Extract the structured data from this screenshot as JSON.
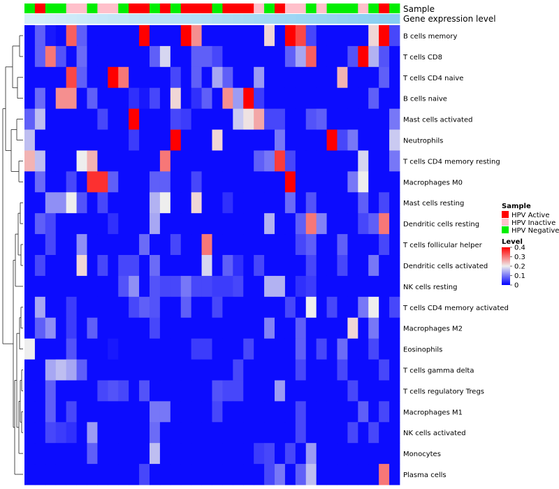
{
  "chart_data": {
    "type": "heatmap",
    "annotation_tracks": {
      "sample_label": "Sample",
      "gene_label": "Gene expression level"
    },
    "sample_categories": [
      {
        "name": "HPV Active",
        "color": "#ff0000"
      },
      {
        "name": "HPV Inactive",
        "color": "#ffc0cb"
      },
      {
        "name": "HPV Negative",
        "color": "#00ee00"
      }
    ],
    "sample_groups": "GRGGPPGPPGRRGRGRRRGRRRPGRPPGPGGGPGRG",
    "gene_track_colors": {
      "start": "#d6eef9",
      "end": "#87cdf2"
    },
    "rows": [
      "B cells memory",
      "T cells CD8",
      "T cells CD4 naive",
      "B cells naive",
      "Mast cells activated",
      "Neutrophils",
      "T cells CD4 memory resting",
      "Macrophages M0",
      "Mast cells resting",
      "Dendritic cells resting",
      "T cells follicular helper",
      "Dendritic cells activated",
      "NK cells resting",
      "T cells CD4 memory activated",
      "Macrophages M2",
      "Eosinophils",
      "T cells gamma delta",
      "T cells regulatory  Tregs",
      "Macrophages M1",
      "NK cells activated",
      "Monocytes",
      "Plasma cells"
    ],
    "n_columns": 36,
    "values": [
      [
        0.01,
        0.08,
        0.02,
        0.01,
        0.32,
        0.08,
        0.01,
        0.01,
        0.01,
        0.01,
        0.01,
        0.4,
        0.01,
        0.01,
        0.01,
        0.4,
        0.28,
        0.01,
        0.01,
        0.01,
        0.01,
        0.01,
        0.01,
        0.22,
        0.01,
        0.4,
        0.34,
        0.06,
        0.01,
        0.01,
        0.01,
        0.01,
        0.01,
        0.22,
        0.4,
        0.06
      ],
      [
        0.01,
        0.08,
        0.3,
        0.07,
        0.01,
        0.09,
        0.01,
        0.01,
        0.01,
        0.01,
        0.01,
        0.01,
        0.08,
        0.18,
        0.01,
        0.01,
        0.08,
        0.08,
        0.06,
        0.01,
        0.01,
        0.01,
        0.01,
        0.01,
        0.01,
        0.08,
        0.14,
        0.32,
        0.01,
        0.01,
        0.01,
        0.07,
        0.4,
        0.15,
        0.07,
        0.01
      ],
      [
        0.01,
        0.01,
        0.01,
        0.01,
        0.34,
        0.08,
        0.01,
        0.01,
        0.4,
        0.3,
        0.01,
        0.01,
        0.01,
        0.01,
        0.06,
        0.01,
        0.08,
        0.01,
        0.14,
        0.08,
        0.01,
        0.01,
        0.13,
        0.01,
        0.01,
        0.01,
        0.01,
        0.01,
        0.01,
        0.01,
        0.25,
        0.01,
        0.01,
        0.01,
        0.08,
        0.01
      ],
      [
        0.01,
        0.09,
        0.01,
        0.28,
        0.28,
        0.01,
        0.08,
        0.01,
        0.01,
        0.01,
        0.04,
        0.02,
        0.06,
        0.01,
        0.22,
        0.01,
        0.04,
        0.08,
        0.01,
        0.28,
        0.13,
        0.4,
        0.05,
        0.01,
        0.01,
        0.01,
        0.01,
        0.01,
        0.01,
        0.01,
        0.01,
        0.01,
        0.01,
        0.08,
        0.01,
        0.01
      ],
      [
        0.08,
        0.16,
        0.01,
        0.01,
        0.01,
        0.01,
        0.01,
        0.06,
        0.01,
        0.01,
        0.4,
        0.01,
        0.01,
        0.01,
        0.06,
        0.05,
        0.01,
        0.01,
        0.01,
        0.01,
        0.17,
        0.21,
        0.26,
        0.06,
        0.06,
        0.01,
        0.01,
        0.07,
        0.08,
        0.01,
        0.01,
        0.01,
        0.01,
        0.01,
        0.01,
        0.1
      ],
      [
        0.16,
        0.01,
        0.01,
        0.01,
        0.01,
        0.01,
        0.01,
        0.01,
        0.01,
        0.01,
        0.05,
        0.01,
        0.01,
        0.01,
        0.4,
        0.01,
        0.01,
        0.01,
        0.22,
        0.01,
        0.01,
        0.01,
        0.01,
        0.01,
        0.1,
        0.01,
        0.01,
        0.01,
        0.01,
        0.4,
        0.06,
        0.1,
        0.01,
        0.01,
        0.01,
        0.17
      ],
      [
        0.25,
        0.16,
        0.01,
        0.01,
        0.01,
        0.2,
        0.25,
        0.01,
        0.01,
        0.01,
        0.01,
        0.01,
        0.01,
        0.3,
        0.01,
        0.01,
        0.01,
        0.01,
        0.01,
        0.01,
        0.01,
        0.01,
        0.08,
        0.1,
        0.35,
        0.06,
        0.01,
        0.01,
        0.01,
        0.01,
        0.01,
        0.01,
        0.18,
        0.01,
        0.01,
        0.1
      ],
      [
        0.01,
        0.09,
        0.01,
        0.01,
        0.06,
        0.01,
        0.36,
        0.36,
        0.08,
        0.01,
        0.01,
        0.01,
        0.08,
        0.08,
        0.01,
        0.01,
        0.06,
        0.01,
        0.01,
        0.01,
        0.01,
        0.01,
        0.01,
        0.01,
        0.01,
        0.4,
        0.01,
        0.01,
        0.01,
        0.01,
        0.01,
        0.1,
        0.2,
        0.01,
        0.01,
        0.01
      ],
      [
        0.01,
        0.01,
        0.12,
        0.12,
        0.2,
        0.07,
        0.01,
        0.06,
        0.01,
        0.01,
        0.01,
        0.01,
        0.15,
        0.2,
        0.01,
        0.01,
        0.22,
        0.01,
        0.01,
        0.04,
        0.01,
        0.01,
        0.01,
        0.01,
        0.01,
        0.09,
        0.01,
        0.07,
        0.01,
        0.01,
        0.01,
        0.01,
        0.08,
        0.01,
        0.06,
        0.01
      ],
      [
        0.01,
        0.08,
        0.06,
        0.01,
        0.01,
        0.01,
        0.01,
        0.01,
        0.04,
        0.01,
        0.01,
        0.01,
        0.14,
        0.01,
        0.01,
        0.01,
        0.01,
        0.01,
        0.01,
        0.01,
        0.01,
        0.01,
        0.01,
        0.15,
        0.01,
        0.01,
        0.08,
        0.3,
        0.11,
        0.01,
        0.01,
        0.01,
        0.06,
        0.08,
        0.3,
        0.01
      ],
      [
        0.01,
        0.01,
        0.06,
        0.01,
        0.01,
        0.12,
        0.01,
        0.01,
        0.01,
        0.01,
        0.01,
        0.09,
        0.01,
        0.01,
        0.06,
        0.01,
        0.01,
        0.3,
        0.01,
        0.01,
        0.01,
        0.01,
        0.01,
        0.01,
        0.01,
        0.01,
        0.06,
        0.08,
        0.01,
        0.01,
        0.08,
        0.01,
        0.01,
        0.01,
        0.06,
        0.01
      ],
      [
        0.01,
        0.06,
        0.01,
        0.01,
        0.01,
        0.22,
        0.01,
        0.06,
        0.01,
        0.06,
        0.06,
        0.01,
        0.09,
        0.01,
        0.01,
        0.01,
        0.01,
        0.18,
        0.01,
        0.08,
        0.04,
        0.01,
        0.06,
        0.01,
        0.01,
        0.01,
        0.01,
        0.06,
        0.01,
        0.01,
        0.06,
        0.01,
        0.01,
        0.1,
        0.01,
        0.01
      ],
      [
        0.01,
        0.01,
        0.01,
        0.01,
        0.01,
        0.01,
        0.01,
        0.01,
        0.01,
        0.07,
        0.12,
        0.01,
        0.07,
        0.06,
        0.06,
        0.1,
        0.06,
        0.06,
        0.05,
        0.05,
        0.06,
        0.01,
        0.01,
        0.15,
        0.15,
        0.01,
        0.04,
        0.05,
        0.01,
        0.01,
        0.01,
        0.01,
        0.01,
        0.01,
        0.01,
        0.01
      ],
      [
        0.01,
        0.14,
        0.01,
        0.01,
        0.05,
        0.01,
        0.01,
        0.01,
        0.01,
        0.01,
        0.06,
        0.08,
        0.07,
        0.01,
        0.01,
        0.08,
        0.01,
        0.01,
        0.06,
        0.01,
        0.01,
        0.01,
        0.01,
        0.01,
        0.01,
        0.06,
        0.01,
        0.2,
        0.01,
        0.06,
        0.01,
        0.01,
        0.1,
        0.2,
        0.01,
        0.06
      ],
      [
        0.01,
        0.08,
        0.12,
        0.01,
        0.05,
        0.01,
        0.08,
        0.01,
        0.01,
        0.01,
        0.01,
        0.01,
        0.06,
        0.01,
        0.01,
        0.01,
        0.01,
        0.01,
        0.01,
        0.01,
        0.01,
        0.01,
        0.01,
        0.11,
        0.01,
        0.01,
        0.08,
        0.01,
        0.01,
        0.01,
        0.01,
        0.22,
        0.01,
        0.1,
        0.01,
        0.01
      ],
      [
        0.2,
        0.01,
        0.01,
        0.01,
        0.07,
        0.01,
        0.01,
        0.01,
        0.02,
        0.01,
        0.01,
        0.01,
        0.01,
        0.01,
        0.01,
        0.01,
        0.05,
        0.05,
        0.01,
        0.01,
        0.01,
        0.06,
        0.01,
        0.01,
        0.01,
        0.01,
        0.08,
        0.01,
        0.06,
        0.01,
        0.09,
        0.01,
        0.01,
        0.06,
        0.01,
        0.01
      ],
      [
        0.01,
        0.01,
        0.14,
        0.16,
        0.14,
        0.08,
        0.01,
        0.01,
        0.01,
        0.01,
        0.01,
        0.01,
        0.01,
        0.01,
        0.01,
        0.01,
        0.01,
        0.01,
        0.01,
        0.01,
        0.06,
        0.01,
        0.01,
        0.01,
        0.01,
        0.01,
        0.06,
        0.01,
        0.01,
        0.01,
        0.06,
        0.01,
        0.01,
        0.01,
        0.06,
        0.01
      ],
      [
        0.01,
        0.01,
        0.08,
        0.01,
        0.01,
        0.01,
        0.01,
        0.06,
        0.07,
        0.06,
        0.01,
        0.07,
        0.01,
        0.01,
        0.01,
        0.01,
        0.01,
        0.01,
        0.07,
        0.06,
        0.06,
        0.01,
        0.01,
        0.01,
        0.13,
        0.01,
        0.01,
        0.01,
        0.01,
        0.01,
        0.01,
        0.06,
        0.01,
        0.01,
        0.01,
        0.01
      ],
      [
        0.01,
        0.01,
        0.08,
        0.01,
        0.06,
        0.01,
        0.01,
        0.01,
        0.01,
        0.01,
        0.01,
        0.01,
        0.1,
        0.1,
        0.01,
        0.01,
        0.01,
        0.01,
        0.06,
        0.01,
        0.01,
        0.01,
        0.01,
        0.01,
        0.01,
        0.01,
        0.06,
        0.01,
        0.01,
        0.01,
        0.01,
        0.01,
        0.08,
        0.01,
        0.06,
        0.01
      ],
      [
        0.01,
        0.01,
        0.06,
        0.05,
        0.04,
        0.01,
        0.13,
        0.01,
        0.01,
        0.01,
        0.01,
        0.01,
        0.09,
        0.01,
        0.01,
        0.01,
        0.01,
        0.01,
        0.01,
        0.01,
        0.01,
        0.01,
        0.01,
        0.01,
        0.01,
        0.01,
        0.06,
        0.01,
        0.01,
        0.01,
        0.01,
        0.06,
        0.01,
        0.06,
        0.01,
        0.01
      ],
      [
        0.01,
        0.01,
        0.01,
        0.01,
        0.01,
        0.01,
        0.08,
        0.01,
        0.01,
        0.01,
        0.01,
        0.01,
        0.16,
        0.01,
        0.01,
        0.01,
        0.01,
        0.01,
        0.01,
        0.01,
        0.01,
        0.01,
        0.05,
        0.06,
        0.01,
        0.06,
        0.01,
        0.13,
        0.01,
        0.01,
        0.01,
        0.01,
        0.01,
        0.01,
        0.01,
        0.01
      ],
      [
        0.01,
        0.01,
        0.01,
        0.01,
        0.01,
        0.01,
        0.01,
        0.01,
        0.01,
        0.01,
        0.01,
        0.06,
        0.01,
        0.01,
        0.01,
        0.01,
        0.01,
        0.01,
        0.01,
        0.01,
        0.01,
        0.01,
        0.01,
        0.06,
        0.1,
        0.01,
        0.08,
        0.16,
        0.01,
        0.01,
        0.01,
        0.01,
        0.01,
        0.01,
        0.3,
        0.01
      ]
    ],
    "color_scale": {
      "name": "Level",
      "range": [
        0,
        0.4
      ],
      "ticks": [
        0.4,
        0.3,
        0.2,
        0.1,
        0
      ],
      "tick_labels": [
        "0.4",
        "0.3",
        "0.2",
        "0.1",
        "0"
      ],
      "low": "#0000ff",
      "mid": "#eeeeee",
      "high": "#ff0000"
    },
    "legend_sample_title": "Sample",
    "dendrogram": "rows"
  }
}
